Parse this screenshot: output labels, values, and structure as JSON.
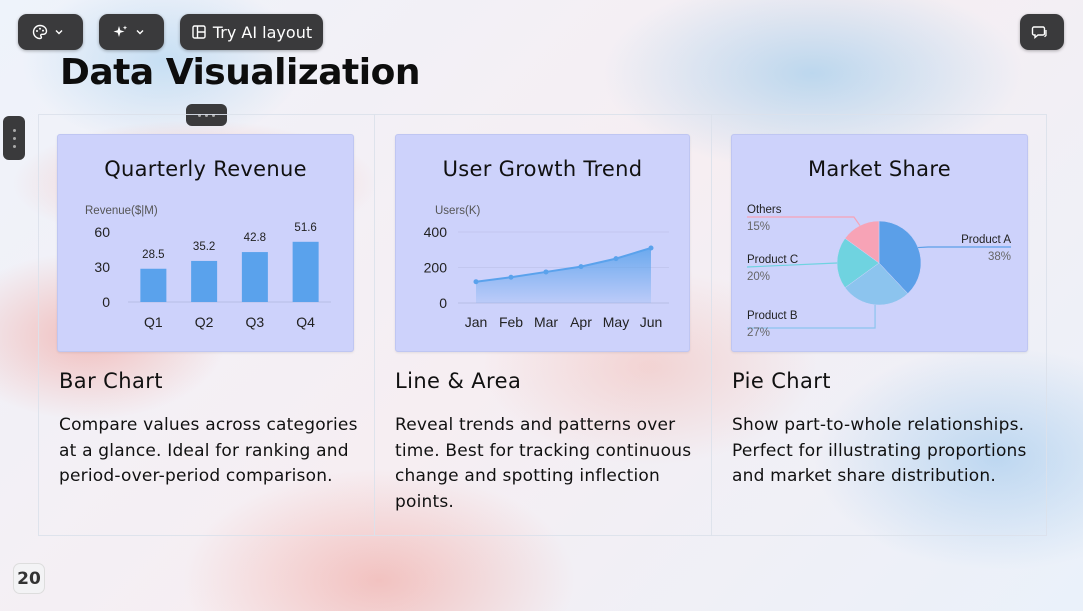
{
  "toolbar": {
    "theme_label": "",
    "ai_label": "",
    "try_ai_layout_label": "Try AI layout",
    "comments_label": ""
  },
  "slide": {
    "title": "Data Visualization",
    "page_number": "20"
  },
  "sections": [
    {
      "title": "Bar Chart",
      "description": "Compare values across categories at a glance. Ideal for ranking and period-over-period comparison."
    },
    {
      "title": "Line & Area",
      "description": "Reveal trends and patterns over time. Best for tracking continuous change and spotting inflection points."
    },
    {
      "title": "Pie Chart",
      "description": "Show part-to-whole relationships. Perfect for illustrating proportions and market share distribution."
    }
  ],
  "colors": {
    "bar": "#5aa2ec",
    "line": "#5aa2ec",
    "pie_a": "#5b9fe8",
    "pie_b": "#8cc4ee",
    "pie_c": "#6fd3e0",
    "pie_others": "#f7a3b6"
  },
  "chart_data": [
    {
      "type": "bar",
      "title": "Quarterly Revenue",
      "ylabel": "Revenue($|M)",
      "categories": [
        "Q1",
        "Q2",
        "Q3",
        "Q4"
      ],
      "values": [
        28.5,
        35.2,
        42.8,
        51.6
      ],
      "value_labels": [
        "28.5",
        "35.2",
        "42.8",
        "51.6"
      ],
      "yticks": [
        "0",
        "30",
        "60"
      ],
      "ylim": [
        0,
        60
      ]
    },
    {
      "type": "area",
      "title": "User Growth Trend",
      "ylabel": "Users(K)",
      "categories": [
        "Jan",
        "Feb",
        "Mar",
        "Apr",
        "May",
        "Jun"
      ],
      "values": [
        120,
        145,
        175,
        205,
        250,
        310
      ],
      "yticks": [
        "0",
        "200",
        "400"
      ],
      "ylim": [
        0,
        400
      ]
    },
    {
      "type": "pie",
      "title": "Market Share",
      "slices": [
        {
          "name": "Product A",
          "value": 38,
          "label": "38%"
        },
        {
          "name": "Product B",
          "value": 27,
          "label": "27%"
        },
        {
          "name": "Product C",
          "value": 20,
          "label": "20%"
        },
        {
          "name": "Others",
          "value": 15,
          "label": "15%"
        }
      ]
    }
  ]
}
